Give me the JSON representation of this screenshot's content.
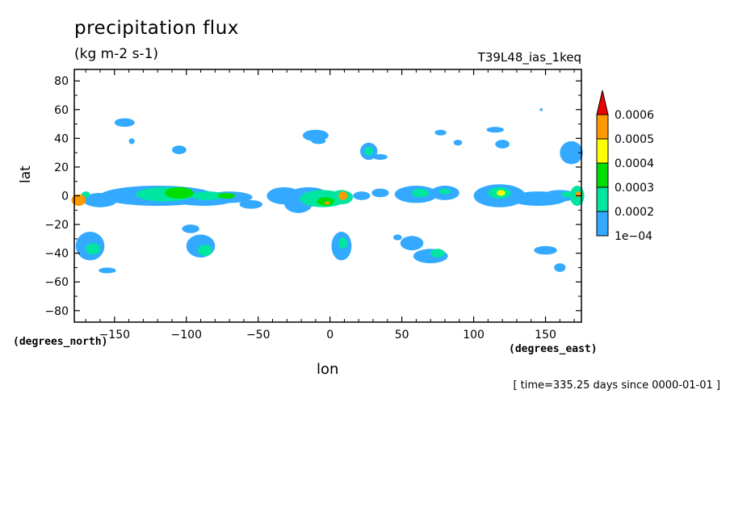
{
  "chart_data": {
    "type": "heatmap",
    "title": "precipitation flux",
    "units": "(kg m-2 s-1)",
    "run_label": "T39L48_ias_1keq",
    "xlabel": "lon",
    "ylabel": "lat",
    "x_units": "(degrees_east)",
    "y_units": "(degrees_north)",
    "time_label": "[ time=335.25 days since 0000-01-01 ]",
    "xlim": [
      -178,
      175
    ],
    "ylim": [
      -88,
      88
    ],
    "xticks": [
      {
        "value": -150,
        "label": "-150"
      },
      {
        "value": -100,
        "label": "-100"
      },
      {
        "value": -50,
        "label": "-50"
      },
      {
        "value": 0,
        "label": "0"
      },
      {
        "value": 50,
        "label": "50"
      },
      {
        "value": 100,
        "label": "100"
      },
      {
        "value": 150,
        "label": "150"
      }
    ],
    "yticks": [
      {
        "value": 80,
        "label": "80"
      },
      {
        "value": 60,
        "label": "60"
      },
      {
        "value": 40,
        "label": "40"
      },
      {
        "value": 20,
        "label": "20"
      },
      {
        "value": 0,
        "label": "0"
      },
      {
        "value": -20,
        "label": "-20"
      },
      {
        "value": -40,
        "label": "-40"
      },
      {
        "value": -60,
        "label": "-60"
      },
      {
        "value": -80,
        "label": "-80"
      }
    ],
    "levels": [
      {
        "label": "1e-04",
        "value": 0.0001,
        "color": "#33aaff"
      },
      {
        "label": "0.0002",
        "value": 0.0002,
        "color": "#00e6a0"
      },
      {
        "label": "0.0003",
        "value": 0.0003,
        "color": "#00dd00"
      },
      {
        "label": "0.0004",
        "value": 0.0004,
        "color": "#ffff00"
      },
      {
        "label": "0.0005",
        "value": 0.0005,
        "color": "#ff9900"
      },
      {
        "label": "0.0006",
        "value": 0.0006,
        "color": "#ee0000"
      }
    ],
    "blobs": [
      {
        "lon": -175,
        "lat": -3,
        "w": 5,
        "h": 4,
        "level": 4
      },
      {
        "lon": -170,
        "lat": 1,
        "w": 3,
        "h": 2,
        "level": 1
      },
      {
        "lon": -160,
        "lat": -3,
        "w": 12,
        "h": 5,
        "level": 0
      },
      {
        "lon": -167,
        "lat": -35,
        "w": 10,
        "h": 10,
        "level": 0
      },
      {
        "lon": -165,
        "lat": -37,
        "w": 5,
        "h": 4,
        "level": 1
      },
      {
        "lon": -155,
        "lat": -52,
        "w": 6,
        "h": 2,
        "level": 0
      },
      {
        "lon": -143,
        "lat": 51,
        "w": 7,
        "h": 3,
        "level": 0
      },
      {
        "lon": -138,
        "lat": 38,
        "w": 2,
        "h": 2,
        "level": 0
      },
      {
        "lon": -137,
        "lat": -2,
        "w": 6,
        "h": 3,
        "level": 0
      },
      {
        "lon": -105,
        "lat": 32,
        "w": 5,
        "h": 3,
        "level": 0
      },
      {
        "lon": -120,
        "lat": 0,
        "w": 40,
        "h": 7,
        "level": 0
      },
      {
        "lon": -115,
        "lat": 1,
        "w": 20,
        "h": 5,
        "level": 1
      },
      {
        "lon": -105,
        "lat": 2,
        "w": 10,
        "h": 4,
        "level": 2
      },
      {
        "lon": -88,
        "lat": -2,
        "w": 22,
        "h": 5,
        "level": 0
      },
      {
        "lon": -85,
        "lat": 0,
        "w": 12,
        "h": 3,
        "level": 1
      },
      {
        "lon": -70,
        "lat": -1,
        "w": 16,
        "h": 4,
        "level": 0
      },
      {
        "lon": -72,
        "lat": 0,
        "w": 6,
        "h": 2,
        "level": 2
      },
      {
        "lon": -55,
        "lat": -6,
        "w": 8,
        "h": 3,
        "level": 0
      },
      {
        "lon": -97,
        "lat": -23,
        "w": 6,
        "h": 3,
        "level": 0
      },
      {
        "lon": -90,
        "lat": -35,
        "w": 10,
        "h": 8,
        "level": 0
      },
      {
        "lon": -87,
        "lat": -38,
        "w": 5,
        "h": 4,
        "level": 1
      },
      {
        "lon": -32,
        "lat": 0,
        "w": 12,
        "h": 6,
        "level": 0
      },
      {
        "lon": -22,
        "lat": -5,
        "w": 10,
        "h": 7,
        "level": 0
      },
      {
        "lon": -15,
        "lat": 0,
        "w": 14,
        "h": 6,
        "level": 0
      },
      {
        "lon": -5,
        "lat": -2,
        "w": 16,
        "h": 6,
        "level": 1
      },
      {
        "lon": -3,
        "lat": -4,
        "w": 6,
        "h": 3,
        "level": 2
      },
      {
        "lon": -2,
        "lat": -5,
        "w": 2,
        "h": 1,
        "level": 4
      },
      {
        "lon": 8,
        "lat": -1,
        "w": 8,
        "h": 5,
        "level": 1
      },
      {
        "lon": 9,
        "lat": 0,
        "w": 3,
        "h": 3,
        "level": 4
      },
      {
        "lon": 8,
        "lat": -35,
        "w": 7,
        "h": 10,
        "level": 0
      },
      {
        "lon": 9,
        "lat": -33,
        "w": 3,
        "h": 4,
        "level": 1
      },
      {
        "lon": -10,
        "lat": 42,
        "w": 9,
        "h": 4,
        "level": 0
      },
      {
        "lon": -8,
        "lat": 38,
        "w": 5,
        "h": 2,
        "level": 0
      },
      {
        "lon": 27,
        "lat": 31,
        "w": 6,
        "h": 6,
        "level": 0
      },
      {
        "lon": 27,
        "lat": 31,
        "w": 3,
        "h": 3,
        "level": 1
      },
      {
        "lon": 35,
        "lat": 27,
        "w": 5,
        "h": 2,
        "level": 0
      },
      {
        "lon": 22,
        "lat": 0,
        "w": 6,
        "h": 3,
        "level": 0
      },
      {
        "lon": 35,
        "lat": 2,
        "w": 6,
        "h": 3,
        "level": 0
      },
      {
        "lon": 60,
        "lat": 1,
        "w": 15,
        "h": 6,
        "level": 0
      },
      {
        "lon": 63,
        "lat": 2,
        "w": 6,
        "h": 3,
        "level": 1
      },
      {
        "lon": 80,
        "lat": 2,
        "w": 10,
        "h": 5,
        "level": 0
      },
      {
        "lon": 80,
        "lat": 3,
        "w": 4,
        "h": 2,
        "level": 1
      },
      {
        "lon": 57,
        "lat": -33,
        "w": 8,
        "h": 5,
        "level": 0
      },
      {
        "lon": 70,
        "lat": -42,
        "w": 12,
        "h": 5,
        "level": 0
      },
      {
        "lon": 75,
        "lat": -40,
        "w": 5,
        "h": 3,
        "level": 1
      },
      {
        "lon": 47,
        "lat": -29,
        "w": 3,
        "h": 2,
        "level": 0
      },
      {
        "lon": 77,
        "lat": 44,
        "w": 4,
        "h": 2,
        "level": 0
      },
      {
        "lon": 89,
        "lat": 37,
        "w": 3,
        "h": 2,
        "level": 0
      },
      {
        "lon": 115,
        "lat": 46,
        "w": 6,
        "h": 2,
        "level": 0
      },
      {
        "lon": 120,
        "lat": 36,
        "w": 5,
        "h": 3,
        "level": 0
      },
      {
        "lon": 118,
        "lat": 0,
        "w": 18,
        "h": 8,
        "level": 0
      },
      {
        "lon": 118,
        "lat": 2,
        "w": 8,
        "h": 4,
        "level": 1
      },
      {
        "lon": 119,
        "lat": 2,
        "w": 3,
        "h": 2,
        "level": 3
      },
      {
        "lon": 145,
        "lat": -2,
        "w": 20,
        "h": 5,
        "level": 0
      },
      {
        "lon": 160,
        "lat": 0,
        "w": 12,
        "h": 4,
        "level": 0
      },
      {
        "lon": 165,
        "lat": 1,
        "w": 4,
        "h": 2,
        "level": 1
      },
      {
        "lon": 172,
        "lat": 0,
        "w": 5,
        "h": 7,
        "level": 1
      },
      {
        "lon": 173,
        "lat": 1,
        "w": 2,
        "h": 2,
        "level": 4
      },
      {
        "lon": 168,
        "lat": 30,
        "w": 8,
        "h": 8,
        "level": 0
      },
      {
        "lon": 150,
        "lat": -38,
        "w": 8,
        "h": 3,
        "level": 0
      },
      {
        "lon": 160,
        "lat": -50,
        "w": 4,
        "h": 3,
        "level": 0
      },
      {
        "lon": 147,
        "lat": 60,
        "w": 1,
        "h": 1,
        "level": 0
      }
    ]
  }
}
